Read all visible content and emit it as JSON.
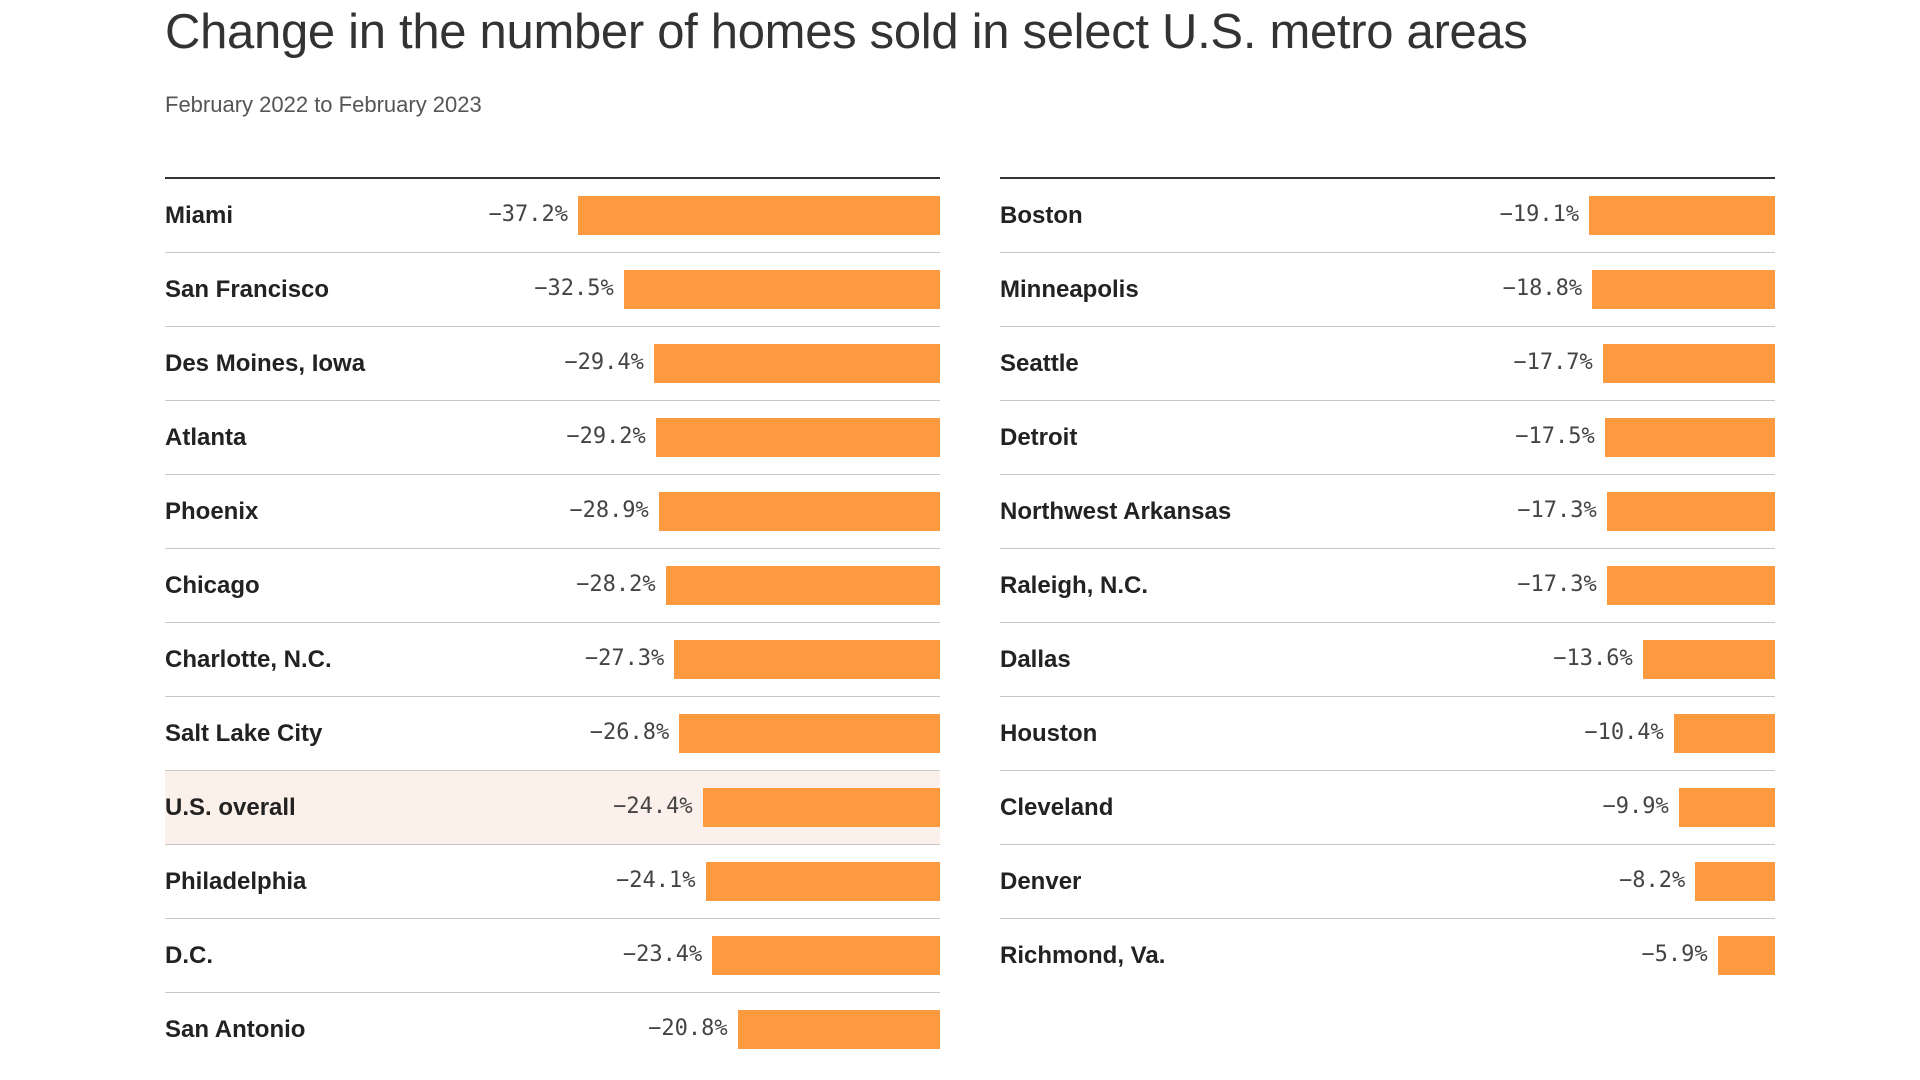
{
  "header": {
    "title": "Change in the number of homes sold in select U.S. metro areas",
    "subtitle": "February 2022 to February 2023"
  },
  "colors": {
    "bar": "#fd9a3f",
    "highlight_row": "#fcf1ea"
  },
  "chart_data": {
    "type": "bar",
    "title": "Change in the number of homes sold in select U.S. metro areas",
    "subtitle": "February 2022 to February 2023",
    "unit": "%",
    "xlim": [
      -37.2,
      0
    ],
    "highlighted_category": "U.S. overall",
    "categories": [
      "Miami",
      "San Francisco",
      "Des Moines, Iowa",
      "Atlanta",
      "Phoenix",
      "Chicago",
      "Charlotte, N.C.",
      "Salt Lake City",
      "U.S. overall",
      "Philadelphia",
      "D.C.",
      "San Antonio",
      "Boston",
      "Minneapolis",
      "Seattle",
      "Detroit",
      "Northwest Arkansas",
      "Raleigh, N.C.",
      "Dallas",
      "Houston",
      "Cleveland",
      "Denver",
      "Richmond, Va."
    ],
    "values": [
      -37.2,
      -32.5,
      -29.4,
      -29.2,
      -28.9,
      -28.2,
      -27.3,
      -26.8,
      -24.4,
      -24.1,
      -23.4,
      -20.8,
      -19.1,
      -18.8,
      -17.7,
      -17.5,
      -17.3,
      -17.3,
      -13.6,
      -10.4,
      -9.9,
      -8.2,
      -5.9
    ],
    "value_labels": [
      "−37.2%",
      "−32.5%",
      "−29.4%",
      "−29.2%",
      "−28.9%",
      "−28.2%",
      "−27.3%",
      "−26.8%",
      "−24.4%",
      "−24.1%",
      "−23.4%",
      "−20.8%",
      "−19.1%",
      "−18.8%",
      "−17.7%",
      "−17.5%",
      "−17.3%",
      "−17.3%",
      "−13.6%",
      "−10.4%",
      "−9.9%",
      "−8.2%",
      "−5.9%"
    ],
    "columns": [
      {
        "start": 0,
        "count": 12
      },
      {
        "start": 12,
        "count": 11
      }
    ]
  }
}
